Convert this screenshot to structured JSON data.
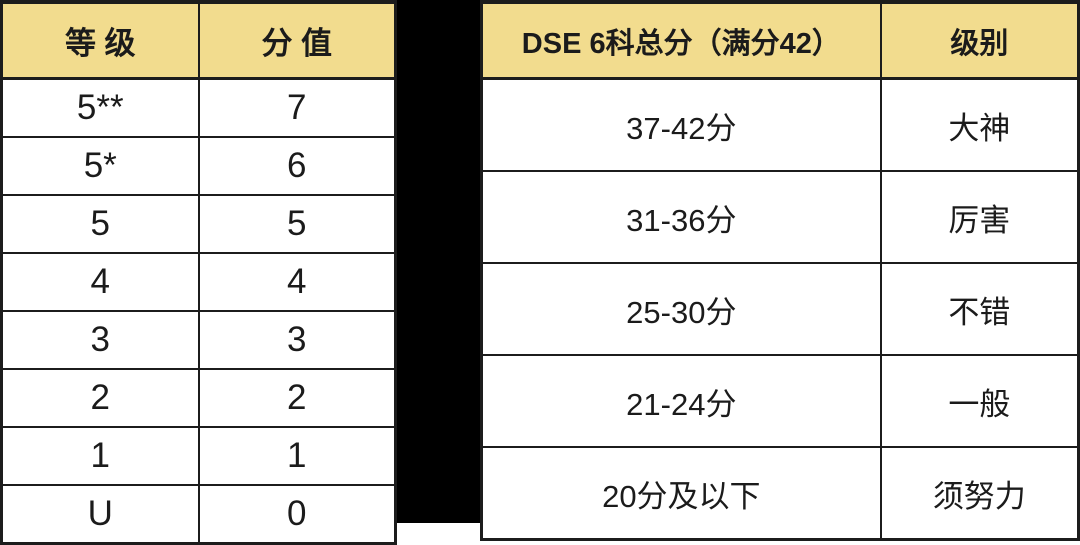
{
  "left_table": {
    "headers": [
      "等 级",
      "分 值"
    ],
    "rows": [
      [
        "5**",
        "7"
      ],
      [
        "5*",
        "6"
      ],
      [
        "5",
        "5"
      ],
      [
        "4",
        "4"
      ],
      [
        "3",
        "3"
      ],
      [
        "2",
        "2"
      ],
      [
        "1",
        "1"
      ],
      [
        "U",
        "0"
      ]
    ]
  },
  "right_table": {
    "headers": [
      "DSE 6科总分（满分42）",
      "级别"
    ],
    "rows": [
      [
        "37-42分",
        "大神"
      ],
      [
        "31-36分",
        "厉害"
      ],
      [
        "25-30分",
        "不错"
      ],
      [
        "21-24分",
        "一般"
      ],
      [
        "20分及以下",
        "须努力"
      ]
    ]
  },
  "colors": {
    "header_bg": "#f2dc8e",
    "border": "#1c1c1c",
    "text": "#1b1b1b",
    "divider": "#000000"
  }
}
